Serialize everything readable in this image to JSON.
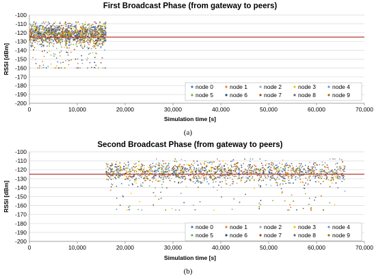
{
  "chart_data": [
    {
      "type": "scatter",
      "title": "First Broadcast Phase (from gateway to peers)",
      "xlabel": "Simulation time [s]",
      "ylabel": "RSSI [dBm]",
      "xlim": [
        0,
        70000
      ],
      "ylim": [
        -200,
        -100
      ],
      "xticks": [
        "0",
        "10,000",
        "20,000",
        "30,000",
        "40,000",
        "50,000",
        "60,000",
        "70,000"
      ],
      "yticks": [
        "-100",
        "-110",
        "-120",
        "-130",
        "-140",
        "-150",
        "-160",
        "-170",
        "-180",
        "-190",
        "-200"
      ],
      "x_range_of_points": [
        0,
        16000
      ],
      "y_cluster": {
        "center": -122,
        "spread_low": -160,
        "spread_high": -108
      },
      "threshold": {
        "y": -125,
        "color": "#b03a2e"
      },
      "grid": "horizontal",
      "legend_position": "bottom-right",
      "caption": "(a)"
    },
    {
      "type": "scatter",
      "title": "Second Broadcast Phase (from gateway to peers)",
      "xlabel": "Simulation time [s]",
      "ylabel": "RSSI [dBm]",
      "xlim": [
        0,
        70000
      ],
      "ylim": [
        -200,
        -100
      ],
      "xticks": [
        "0",
        "10,000",
        "20,000",
        "30,000",
        "40,000",
        "50,000",
        "60,000",
        "70,000"
      ],
      "yticks": [
        "-100",
        "-110",
        "-120",
        "-130",
        "-140",
        "-150",
        "-160",
        "-170",
        "-180",
        "-190",
        "-200"
      ],
      "x_range_of_points": [
        16000,
        66000
      ],
      "y_cluster": {
        "center": -123,
        "spread_low": -165,
        "spread_high": -108
      },
      "threshold": {
        "y": -125,
        "color": "#b03a2e"
      },
      "grid": "horizontal",
      "legend_position": "bottom-right",
      "caption": "(b)"
    }
  ],
  "series": [
    {
      "name": "node 0",
      "color": "#4472c4"
    },
    {
      "name": "node 1",
      "color": "#ed7d31"
    },
    {
      "name": "node 2",
      "color": "#a5a5a5"
    },
    {
      "name": "node 3",
      "color": "#ffc000"
    },
    {
      "name": "node 4",
      "color": "#5b9bd5"
    },
    {
      "name": "node 5",
      "color": "#70ad47"
    },
    {
      "name": "node 6",
      "color": "#264478"
    },
    {
      "name": "node 7",
      "color": "#9e480e"
    },
    {
      "name": "node 8",
      "color": "#636363"
    },
    {
      "name": "node 9",
      "color": "#997300"
    }
  ]
}
